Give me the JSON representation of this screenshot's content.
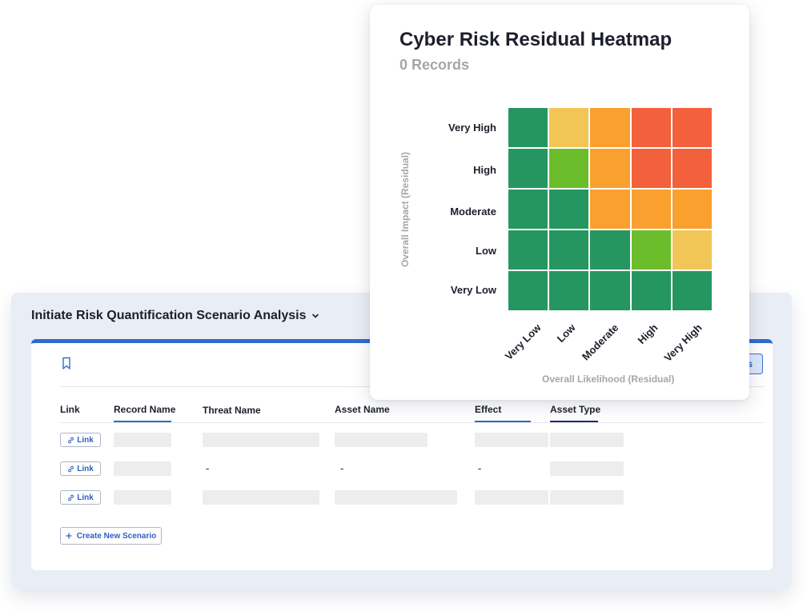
{
  "panel": {
    "title": "Initiate Risk Quantification Scenario Analysis",
    "partial_button_label": "s",
    "columns": [
      "Link",
      "Record Name",
      "Threat Name",
      "Asset Name",
      "Effect",
      "Asset Type"
    ],
    "link_label": "Link",
    "dash": "-",
    "create_button_label": "Create New Scenario"
  },
  "heatmap": {
    "title": "Cyber Risk Residual Heatmap",
    "subtitle": "0 Records",
    "y_axis_title": "Overall Impact (Residual)",
    "x_axis_title": "Overall Likelihood (Residual)",
    "rows": [
      "Very High",
      "High",
      "Moderate",
      "Low",
      "Very Low"
    ],
    "cols": [
      "Very Low",
      "Low",
      "Moderate",
      "High",
      "Very High"
    ],
    "colors": {
      "G": "#269661",
      "L": "#6cbd2c",
      "Y": "#f2c656",
      "O": "#f9a02f",
      "R": "#f3603c"
    },
    "matrix": [
      [
        "G",
        "Y",
        "O",
        "R",
        "R"
      ],
      [
        "G",
        "L",
        "O",
        "R",
        "R"
      ],
      [
        "G",
        "G",
        "O",
        "O",
        "O"
      ],
      [
        "G",
        "G",
        "G",
        "L",
        "Y"
      ],
      [
        "G",
        "G",
        "G",
        "G",
        "G"
      ]
    ]
  }
}
